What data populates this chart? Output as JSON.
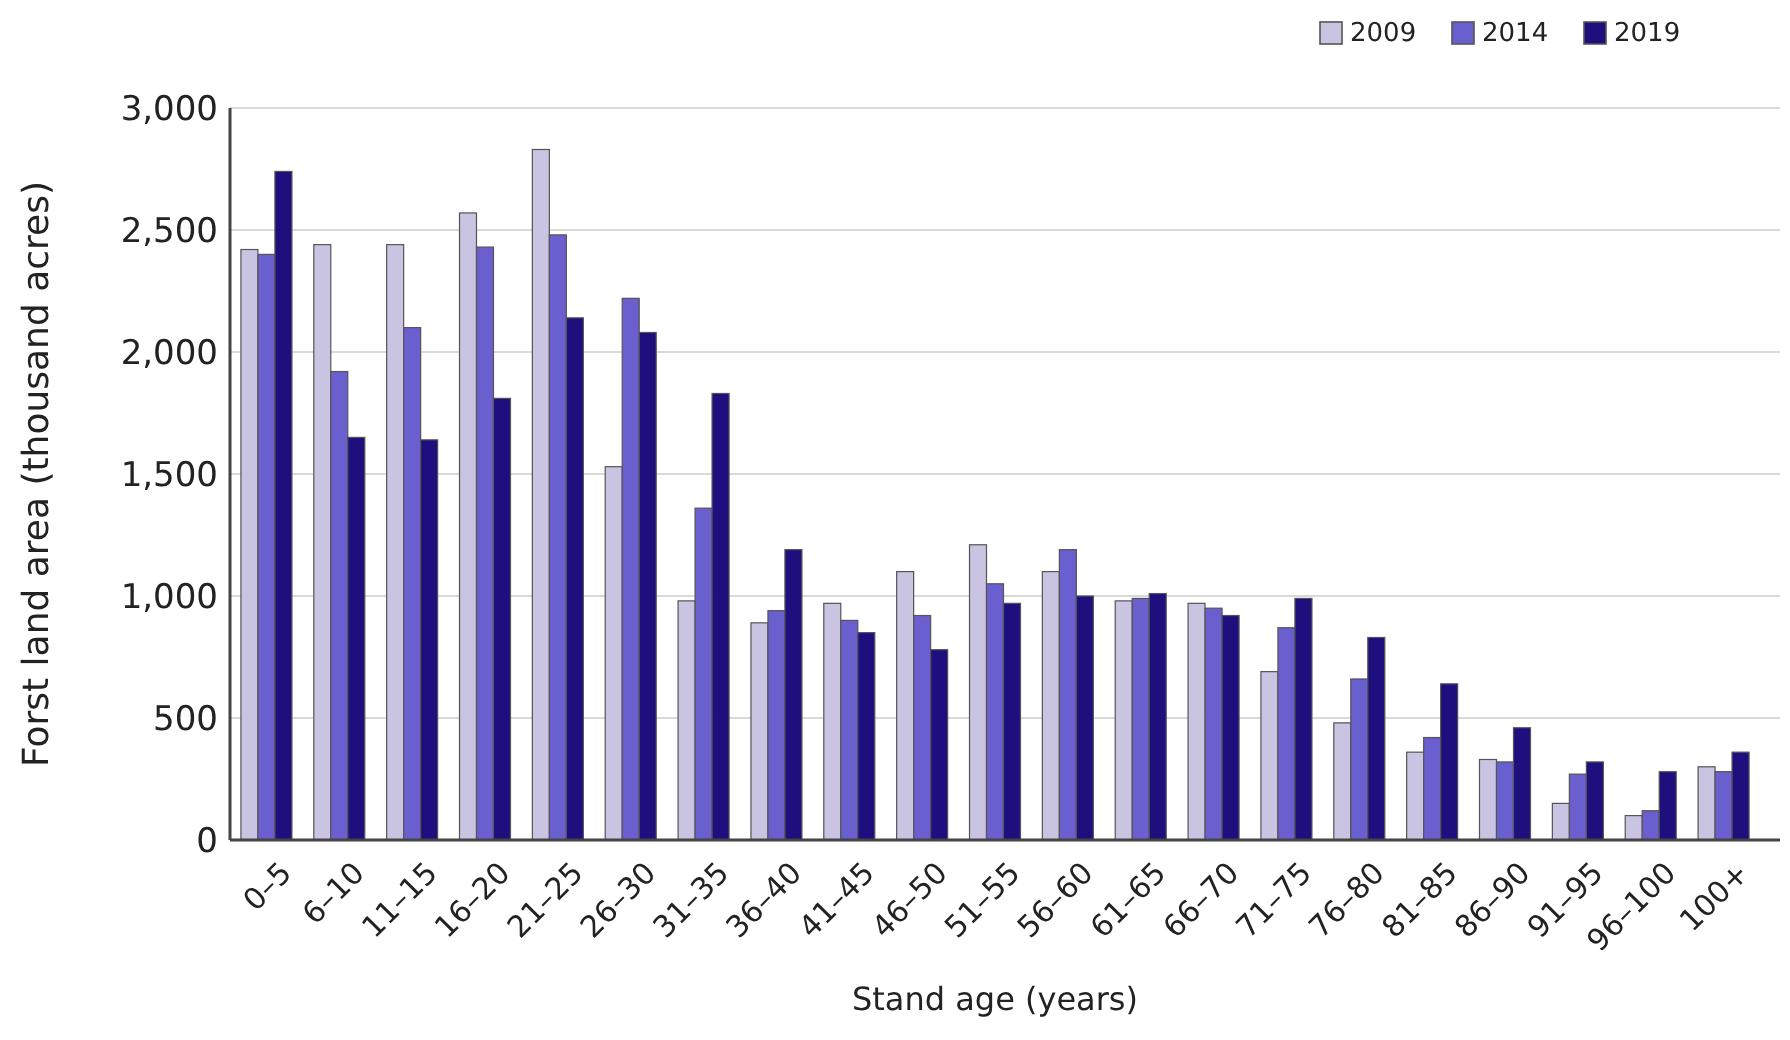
{
  "chart_data": {
    "type": "bar",
    "xlabel": "Stand age (years)",
    "ylabel": "Forst land area (thousand acres)",
    "categories": [
      "0–5",
      "6–10",
      "11–15",
      "16–20",
      "21–25",
      "26–30",
      "31–35",
      "36–40",
      "41–45",
      "46–50",
      "51–55",
      "56–60",
      "61–65",
      "66–70",
      "71–75",
      "76–80",
      "81–85",
      "86–90",
      "91–95",
      "96–100",
      "100+"
    ],
    "series": [
      {
        "name": "2009",
        "color": "#c8c4e2",
        "values": [
          2420,
          2440,
          2440,
          2570,
          2830,
          1530,
          980,
          890,
          970,
          1100,
          1210,
          1100,
          980,
          970,
          690,
          480,
          360,
          330,
          150,
          100,
          300
        ]
      },
      {
        "name": "2014",
        "color": "#6a5fcf",
        "values": [
          2400,
          1920,
          2100,
          2430,
          2480,
          2220,
          1360,
          940,
          900,
          920,
          1050,
          1190,
          990,
          950,
          870,
          660,
          420,
          320,
          270,
          120,
          280
        ]
      },
      {
        "name": "2019",
        "color": "#1e0f7e",
        "values": [
          2740,
          1650,
          1640,
          1810,
          2140,
          2080,
          1830,
          1190,
          850,
          780,
          970,
          1000,
          1010,
          920,
          990,
          830,
          640,
          460,
          320,
          280,
          360
        ]
      }
    ],
    "ylim": [
      0,
      3000
    ],
    "yticks": [
      {
        "value": 0,
        "label": "0"
      },
      {
        "value": 500,
        "label": "500"
      },
      {
        "value": 1000,
        "label": "1,000"
      },
      {
        "value": 1500,
        "label": "1,500"
      },
      {
        "value": 2000,
        "label": "2,000"
      },
      {
        "value": 2500,
        "label": "2,500"
      },
      {
        "value": 3000,
        "label": "3,000"
      }
    ],
    "grid": "y",
    "legend": "top right"
  }
}
